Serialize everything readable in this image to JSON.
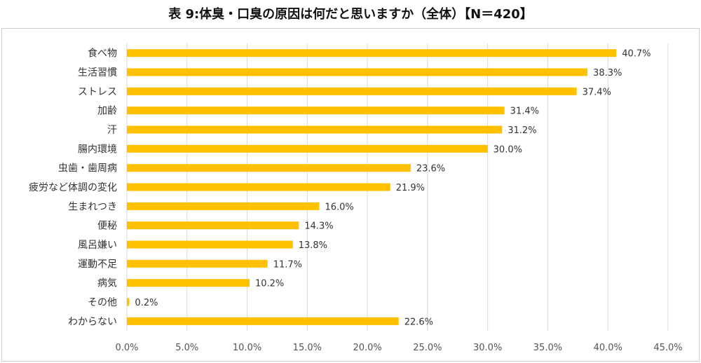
{
  "chart_data": {
    "type": "bar",
    "orientation": "horizontal",
    "title": "表 9:体臭・口臭の原因は何だと思いますか（全体）【N＝420】",
    "categories": [
      "食べ物",
      "生活習慣",
      "ストレス",
      "加齢",
      "汗",
      "腸内環境",
      "虫歯・歯周病",
      "疲労など体調の変化",
      "生まれつき",
      "便秘",
      "風呂嫌い",
      "運動不足",
      "病気",
      "その他",
      "わからない"
    ],
    "values": [
      40.7,
      38.3,
      37.4,
      31.4,
      31.2,
      30.0,
      23.6,
      21.9,
      16.0,
      14.3,
      13.8,
      11.7,
      10.2,
      0.2,
      22.6
    ],
    "value_labels": [
      "40.7%",
      "38.3%",
      "37.4%",
      "31.4%",
      "31.2%",
      "30.0%",
      "23.6%",
      "21.9%",
      "16.0%",
      "14.3%",
      "13.8%",
      "11.7%",
      "10.2%",
      "0.2%",
      "22.6%"
    ],
    "xlim": [
      0,
      45
    ],
    "xticks": [
      0,
      5,
      10,
      15,
      20,
      25,
      30,
      35,
      40,
      45
    ],
    "xtick_labels": [
      "0.0%",
      "5.0%",
      "10.0%",
      "15.0%",
      "20.0%",
      "25.0%",
      "30.0%",
      "35.0%",
      "40.0%",
      "45.0%"
    ],
    "grid": "vertical",
    "legend": "none",
    "bar_color": "#FFC000",
    "grid_color": "#d9d9d9"
  }
}
